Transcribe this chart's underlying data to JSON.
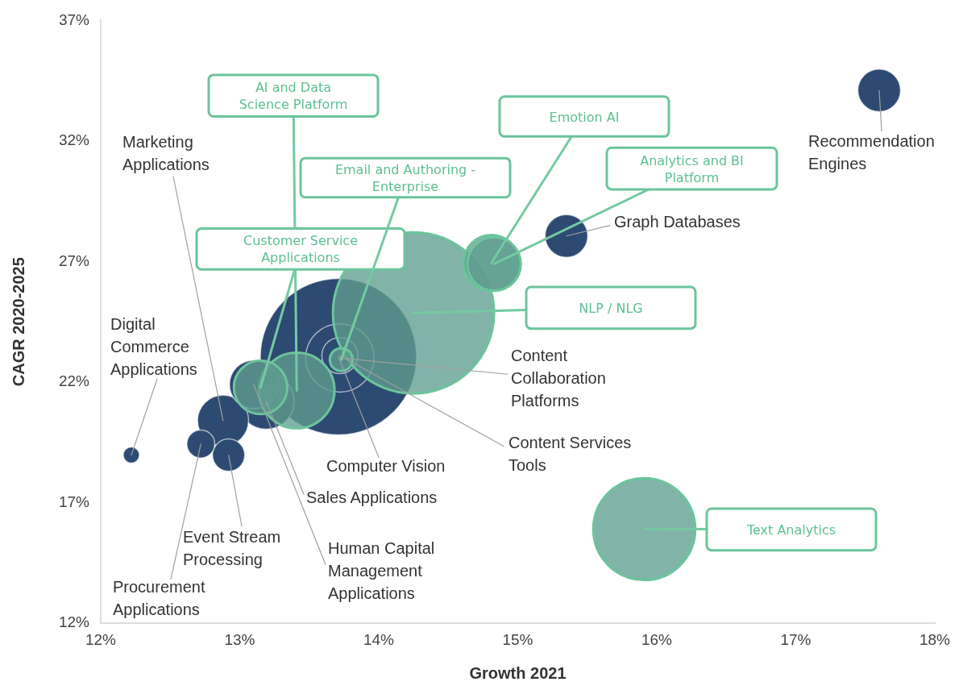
{
  "chart_data": {
    "type": "bubble",
    "xlabel": "Growth 2021",
    "ylabel": "CAGR 2020-2025",
    "xlim": [
      12,
      18
    ],
    "xticks": [
      {
        "value": 12,
        "label": "12%"
      },
      {
        "value": 13,
        "label": "13%"
      },
      {
        "value": 14,
        "label": "14%"
      },
      {
        "value": 15,
        "label": "15%"
      },
      {
        "value": 16,
        "label": "16%"
      },
      {
        "value": 17,
        "label": "17%"
      },
      {
        "value": 18,
        "label": "18%"
      }
    ],
    "ylim": [
      12,
      37
    ],
    "yticks": [
      {
        "value": 12,
        "label": "12%"
      },
      {
        "value": 17,
        "label": "17%"
      },
      {
        "value": 22,
        "label": "22%"
      },
      {
        "value": 27,
        "label": "27%"
      },
      {
        "value": 32,
        "label": "32%"
      },
      {
        "value": 37,
        "label": "37%"
      }
    ],
    "grid": false,
    "legend": false,
    "series": [
      {
        "color": "#2d4a72",
        "x": [
          13.71,
          13.72,
          13.19,
          12.88,
          13.1,
          17.6,
          15.35,
          13.72,
          12.92,
          12.72,
          12.22
        ],
        "values": [
          23.05,
          23.0,
          21.2,
          20.4,
          21.9,
          34.1,
          28.06,
          23.1,
          18.97,
          19.43,
          18.97
        ],
        "sizes": [
          0.94,
          0.18,
          0.12,
          0.1,
          0.09,
          0.07,
          0.07,
          0.05,
          0.04,
          0.03,
          0.01
        ]
      },
      {
        "color": "#5f9e8f",
        "x": [
          14.25,
          15.91,
          13.41,
          14.81,
          14.83,
          13.15,
          13.73
        ],
        "values": [
          24.87,
          15.9,
          21.65,
          26.94,
          26.9,
          21.78,
          22.93
        ],
        "sizes": [
          1,
          0.4,
          0.22,
          0.12,
          0.11,
          0.11,
          0.02
        ]
      }
    ],
    "annotations": [
      {
        "text": "Computer Vision",
        "x": 13.71,
        "y": 23.05
      },
      {
        "text": "Content Collaboration Platforms",
        "x": 13.72,
        "y": 23.0
      },
      {
        "text": "Sales Applications",
        "x": 13.19,
        "y": 21.2
      },
      {
        "text": "Marketing Applications",
        "x": 12.88,
        "y": 20.4
      },
      {
        "text": "Human Capital Management Applications",
        "x": 13.1,
        "y": 21.9
      },
      {
        "text": "Recommendation Engines",
        "x": 17.6,
        "y": 34.1
      },
      {
        "text": "Graph Databases",
        "x": 15.35,
        "y": 28.06
      },
      {
        "text": "Content Services Tools",
        "x": 13.72,
        "y": 23.1
      },
      {
        "text": "Event Stream Processing",
        "x": 12.92,
        "y": 18.97
      },
      {
        "text": "Procurement Applications",
        "x": 12.72,
        "y": 19.43
      },
      {
        "text": "Digital Commerce Applications",
        "x": 12.22,
        "y": 18.97
      },
      {
        "text": "NLP / NLG",
        "x": 14.25,
        "y": 24.87
      },
      {
        "text": "Text Analytics",
        "x": 15.91,
        "y": 15.9
      },
      {
        "text": "AI and Data Science Platform",
        "x": 13.41,
        "y": 21.65
      },
      {
        "text": "Emotion AI",
        "x": 14.81,
        "y": 26.94
      },
      {
        "text": "Analytics and BI Platform",
        "x": 14.83,
        "y": 26.9
      },
      {
        "text": "Customer Service Applications",
        "x": 13.15,
        "y": 21.78
      },
      {
        "text": "Email and Authoring - Enterprise",
        "x": 13.73,
        "y": 22.93
      }
    ]
  }
}
